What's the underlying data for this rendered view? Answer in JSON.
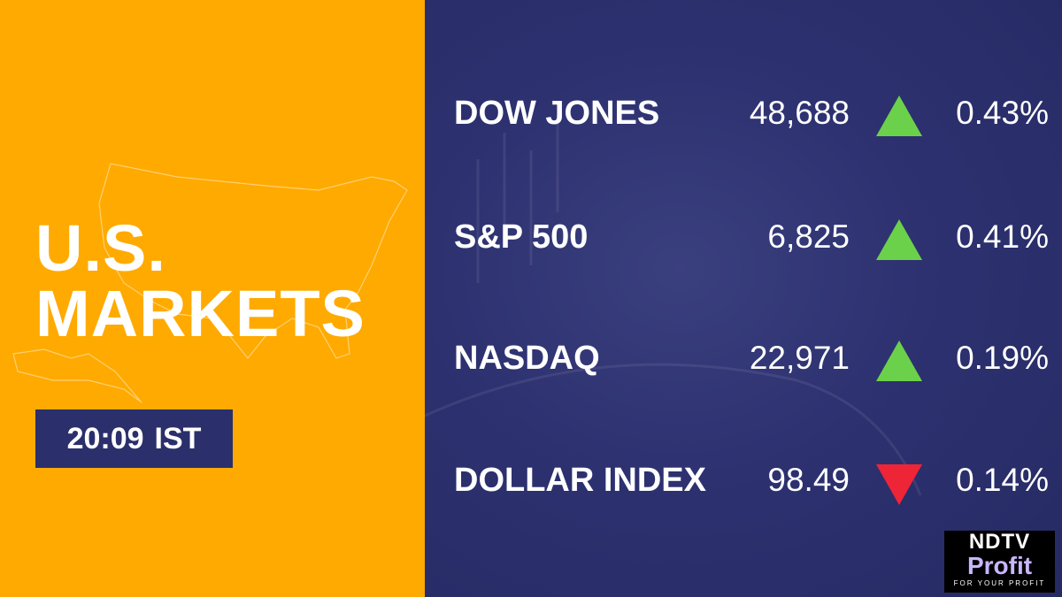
{
  "header": {
    "title_lines": [
      "U.S.",
      "MARKETS"
    ],
    "time": "20:09",
    "zone": "IST"
  },
  "table": {
    "rows": [
      {
        "name": "DOW JONES",
        "value": "48,688",
        "direction": "up",
        "change": "0.43%"
      },
      {
        "name": "S&P 500",
        "value": "6,825",
        "direction": "up",
        "change": "0.41%"
      },
      {
        "name": "NASDAQ",
        "value": "22,971",
        "direction": "up",
        "change": "0.19%"
      },
      {
        "name": "DOLLAR INDEX",
        "value": "98.49",
        "direction": "down",
        "change": "0.14%"
      }
    ]
  },
  "logo": {
    "brand": "NDTV",
    "product": "Profit",
    "tagline": "FOR YOUR PROFIT"
  }
}
